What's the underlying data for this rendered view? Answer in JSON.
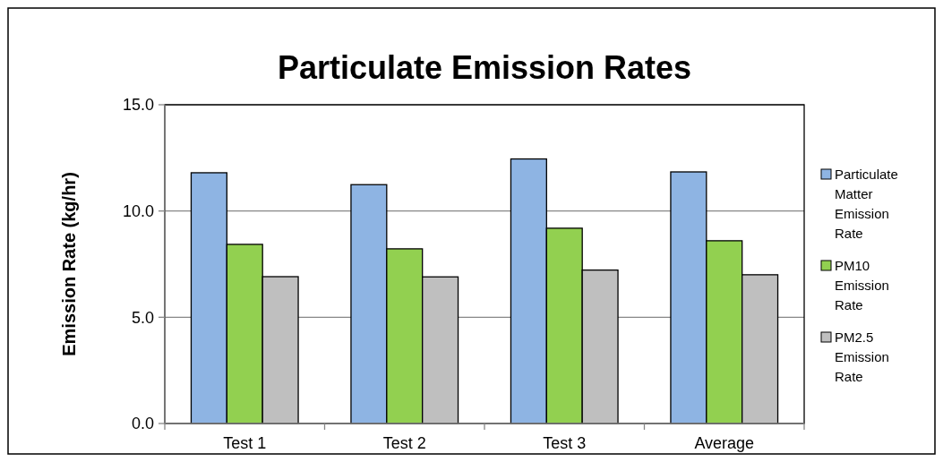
{
  "chart_data": {
    "type": "bar",
    "title": "Particulate Emission Rates",
    "ylabel": "Emission Rate (kg/hr)",
    "categories": [
      "Test 1",
      "Test 2",
      "Test 3",
      "Average"
    ],
    "series": [
      {
        "name": "Particulate Matter Emission Rate",
        "color": "#8eb4e3",
        "values": [
          11.8,
          11.24,
          12.45,
          11.84
        ]
      },
      {
        "name": "PM10 Emission Rate",
        "color": "#92d050",
        "values": [
          8.43,
          8.22,
          9.19,
          8.6
        ]
      },
      {
        "name": "PM2.5 Emission Rate",
        "color": "#bfbfbf",
        "values": [
          6.91,
          6.9,
          7.22,
          7.0
        ]
      }
    ],
    "ylim": [
      0,
      15
    ],
    "yticks": [
      {
        "value": 0,
        "label": "0.0"
      },
      {
        "value": 5,
        "label": "5.0"
      },
      {
        "value": 10,
        "label": "10.0"
      },
      {
        "value": 15,
        "label": "15.0"
      }
    ],
    "grid": "y",
    "legend": "right"
  }
}
